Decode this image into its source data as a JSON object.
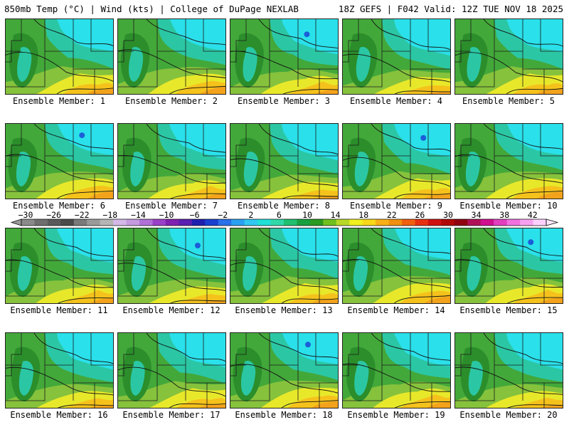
{
  "header": {
    "title": "850mb Temp (°C) | Wind (kts) | College of DuPage NEXLAB",
    "run_info": "18Z GEFS | F042 Valid: 12Z TUE NOV 18 2025"
  },
  "panels": [
    {
      "member": 1,
      "label": "Ensemble Member: 1"
    },
    {
      "member": 2,
      "label": "Ensemble Member: 2"
    },
    {
      "member": 3,
      "label": "Ensemble Member: 3"
    },
    {
      "member": 4,
      "label": "Ensemble Member: 4"
    },
    {
      "member": 5,
      "label": "Ensemble Member: 5"
    },
    {
      "member": 6,
      "label": "Ensemble Member: 6"
    },
    {
      "member": 7,
      "label": "Ensemble Member: 7"
    },
    {
      "member": 8,
      "label": "Ensemble Member: 8"
    },
    {
      "member": 9,
      "label": "Ensemble Member: 9"
    },
    {
      "member": 10,
      "label": "Ensemble Member: 10"
    },
    {
      "member": 11,
      "label": "Ensemble Member: 11"
    },
    {
      "member": 12,
      "label": "Ensemble Member: 12"
    },
    {
      "member": 13,
      "label": "Ensemble Member: 13"
    },
    {
      "member": 14,
      "label": "Ensemble Member: 14"
    },
    {
      "member": 15,
      "label": "Ensemble Member: 15"
    },
    {
      "member": 16,
      "label": "Ensemble Member: 16"
    },
    {
      "member": 17,
      "label": "Ensemble Member: 17"
    },
    {
      "member": 18,
      "label": "Ensemble Member: 18"
    },
    {
      "member": 19,
      "label": "Ensemble Member: 19"
    },
    {
      "member": 20,
      "label": "Ensemble Member: 20"
    }
  ],
  "colorbar": {
    "labels": [
      "−30",
      "−26",
      "−22",
      "−18",
      "−14",
      "−10",
      "−6",
      "−2",
      "2",
      "6",
      "10",
      "14",
      "18",
      "22",
      "26",
      "30",
      "34",
      "38",
      "42"
    ],
    "colors": [
      "#8a8a8a",
      "#6e6e6e",
      "#5a5a5a",
      "#4a4a4a",
      "#7a7a7a",
      "#9a9a9a",
      "#b5b5b5",
      "#d4b8e8",
      "#c59ae0",
      "#b070d8",
      "#9a40c8",
      "#8020b0",
      "#5a20b0",
      "#2020b0",
      "#1a40d0",
      "#2a70e8",
      "#2aa0f0",
      "#30c8f0",
      "#20e0d8",
      "#30d8a8",
      "#20c070",
      "#18a040",
      "#2a9a20",
      "#70c020",
      "#b8d828",
      "#f0f020",
      "#f8d818",
      "#f8b018",
      "#f09010",
      "#f06010",
      "#e83010",
      "#d01010",
      "#b00808",
      "#900010",
      "#b01058",
      "#d01090",
      "#e040c0",
      "#f070e0",
      "#f8a0f0",
      "#fcd0fc"
    ]
  },
  "palette": {
    "dark_green": "#2b8e2b",
    "green": "#43a83a",
    "light_green": "#86c23c",
    "teal": "#2bc7a4",
    "cyan": "#2ae0ea",
    "blue": "#1c5ed8",
    "yellow": "#e8e82a",
    "gold": "#f5c21c",
    "orange": "#f3a21c"
  }
}
